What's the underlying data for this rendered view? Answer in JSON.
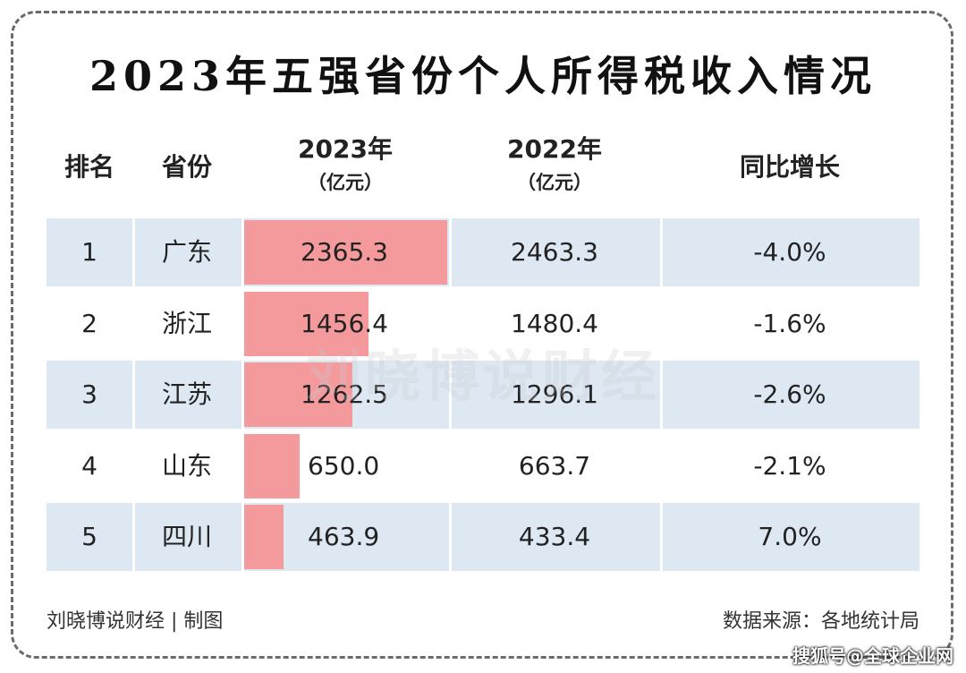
{
  "title": "2023年五强省份个人所得税收入情况",
  "headers": {
    "rank": "排名",
    "province": "省份",
    "y2023": "2023年",
    "y2023_unit": "（亿元）",
    "y2022": "2022年",
    "y2022_unit": "（亿元）",
    "growth": "同比增长"
  },
  "chart_data": {
    "type": "table",
    "title": "2023年五强省份个人所得税收入情况",
    "columns": [
      "排名",
      "省份",
      "2023年（亿元）",
      "2022年（亿元）",
      "同比增长"
    ],
    "rows": [
      {
        "rank": "1",
        "province": "广东",
        "v2023": 2365.3,
        "v2023_label": "2365.3",
        "v2022_label": "2463.3",
        "growth": "-4.0%"
      },
      {
        "rank": "2",
        "province": "浙江",
        "v2023": 1456.4,
        "v2023_label": "1456.4",
        "v2022_label": "1480.4",
        "growth": "-1.6%"
      },
      {
        "rank": "3",
        "province": "江苏",
        "v2023": 1262.5,
        "v2023_label": "1262.5",
        "v2022_label": "1296.1",
        "growth": "-2.6%"
      },
      {
        "rank": "4",
        "province": "山东",
        "v2023": 650.0,
        "v2023_label": "650.0",
        "v2022_label": "663.7",
        "growth": "-2.1%"
      },
      {
        "rank": "5",
        "province": "四川",
        "v2023": 463.9,
        "v2023_label": "463.9",
        "v2022_label": "433.4",
        "growth": "7.0%"
      }
    ],
    "bar_column": "2023年（亿元）",
    "bar_color": "#f49a9c",
    "stripe_color": "#dde8f3"
  },
  "watermark": "刘晓博说财经",
  "footer": {
    "left": "刘晓博说财经 | 制图",
    "right": "数据来源：各地统计局"
  },
  "badge": "搜狐号@全球企业网"
}
